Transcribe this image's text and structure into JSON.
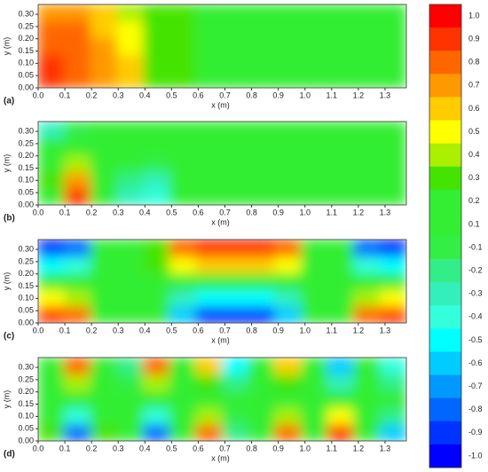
{
  "chart_data": {
    "type": "contour",
    "x_label": "x (m)",
    "y_label": "y (m)",
    "xlim": [
      0,
      1.38
    ],
    "ylim": [
      0,
      0.34
    ],
    "xticks": [
      {
        "value": 0,
        "label": "0.0"
      },
      0.1,
      0.2,
      0.3,
      0.4,
      0.5,
      0.6,
      0.7,
      0.8,
      0.9,
      {
        "value": 1,
        "label": "1.0"
      },
      1.1,
      1.2,
      1.3
    ],
    "yticks": [
      {
        "value": 0,
        "label": "0.00"
      },
      0.05,
      {
        "value": 0.1,
        "label": "0.10"
      },
      0.15,
      {
        "value": 0.2,
        "label": "0.20"
      },
      0.25,
      {
        "value": 0.3,
        "label": "0.30"
      }
    ],
    "colorbar": {
      "ticks": [
        {
          "value": 1,
          "label": "1.0"
        },
        0.9,
        0.8,
        0.7,
        0.6,
        0.5,
        0.4,
        0.3,
        0.2,
        0.1,
        -0.1,
        -0.2,
        -0.3,
        -0.4,
        -0.5,
        -0.6,
        -0.7,
        -0.8,
        -0.9,
        {
          "value": -1,
          "label": "-1.0"
        }
      ],
      "colors": [
        "#ff0000",
        "#ff3300",
        "#ff6600",
        "#ff9900",
        "#ffcc00",
        "#ffff00",
        "#aaf000",
        "#44e400",
        "#33ee33",
        "#33ee33",
        "#33ee44",
        "#33ee88",
        "#33f0bb",
        "#33ffdd",
        "#00ffff",
        "#00ccff",
        "#0099ff",
        "#0066ff",
        "#0033ff",
        "#0000ff"
      ]
    },
    "panels": [
      {
        "label": "(a)",
        "values": [
          [
            0.95,
            0.85,
            0.72,
            0.55,
            0.35,
            0.25,
            0.2,
            0.2,
            0.2,
            0.2,
            0.2,
            0.2,
            0.15,
            0.15
          ],
          [
            0.9,
            0.82,
            0.7,
            0.55,
            0.35,
            0.25,
            0.2,
            0.2,
            0.2,
            0.2,
            0.2,
            0.2,
            0.15,
            0.15
          ],
          [
            0.85,
            0.8,
            0.68,
            0.5,
            0.33,
            0.25,
            0.2,
            0.2,
            0.2,
            0.2,
            0.2,
            0.2,
            0.15,
            0.15
          ],
          [
            0.8,
            0.75,
            0.62,
            0.45,
            0.3,
            0.25,
            0.2,
            0.2,
            0.2,
            0.2,
            0.2,
            0.2,
            0.15,
            0.15
          ],
          [
            0.7,
            0.68,
            0.55,
            0.4,
            0.28,
            0.25,
            0.2,
            0.2,
            0.2,
            0.2,
            0.2,
            0.2,
            0.15,
            0.15
          ]
        ]
      },
      {
        "label": "(b)",
        "values": [
          [
            0.2,
            0.9,
            0.2,
            -0.3,
            -0.4,
            0.1,
            0.2,
            0.2,
            0.2,
            0.2,
            0.2,
            0.2,
            0.2,
            0.2
          ],
          [
            0.3,
            0.7,
            0.2,
            -0.2,
            -0.3,
            0.1,
            0.2,
            0.2,
            0.2,
            0.2,
            0.2,
            0.2,
            0.2,
            0.2
          ],
          [
            0.2,
            0.4,
            0.2,
            0.0,
            -0.1,
            0.2,
            0.2,
            0.2,
            0.2,
            0.2,
            0.2,
            0.2,
            0.2,
            0.2
          ],
          [
            0.1,
            0.2,
            0.2,
            0.2,
            0.2,
            0.2,
            0.2,
            0.2,
            0.2,
            0.2,
            0.2,
            0.2,
            0.2,
            0.2
          ],
          [
            -0.3,
            -0.1,
            0.2,
            0.2,
            0.2,
            0.2,
            0.2,
            0.2,
            0.2,
            0.2,
            0.2,
            0.2,
            0.2,
            0.2
          ]
        ]
      },
      {
        "label": "(c)",
        "values": [
          [
            0.9,
            0.8,
            0.2,
            0.2,
            0.1,
            -0.6,
            -0.9,
            -0.95,
            -0.9,
            -0.6,
            0.1,
            0.2,
            0.8,
            0.9
          ],
          [
            0.5,
            0.4,
            0.2,
            0.2,
            0.1,
            -0.3,
            -0.5,
            -0.5,
            -0.5,
            -0.3,
            0.1,
            0.2,
            0.4,
            0.5
          ],
          [
            0.2,
            0.2,
            0.2,
            0.2,
            0.2,
            0.2,
            0.2,
            0.2,
            0.2,
            0.2,
            0.2,
            0.2,
            0.2,
            0.2
          ],
          [
            -0.5,
            -0.4,
            0.2,
            0.2,
            0.3,
            0.5,
            0.6,
            0.6,
            0.6,
            0.5,
            0.2,
            0.2,
            -0.4,
            -0.5
          ],
          [
            -0.9,
            -0.8,
            0.2,
            0.2,
            0.3,
            0.8,
            0.9,
            0.9,
            0.9,
            0.8,
            0.2,
            0.2,
            -0.8,
            -0.9
          ]
        ]
      },
      {
        "label": "(d)",
        "values": [
          [
            0.3,
            -0.8,
            0.3,
            0.1,
            -0.8,
            0.2,
            0.8,
            -0.2,
            0.2,
            0.8,
            0.2,
            0.9,
            0.2,
            -0.6
          ],
          [
            0.2,
            -0.4,
            0.2,
            0.1,
            -0.4,
            0.2,
            0.4,
            -0.1,
            0.2,
            0.4,
            0.2,
            0.5,
            0.2,
            -0.2
          ],
          [
            0.2,
            0.2,
            0.2,
            0.2,
            0.2,
            0.2,
            0.2,
            0.2,
            0.2,
            0.2,
            0.2,
            0.2,
            0.2,
            0.2
          ],
          [
            0.2,
            0.4,
            0.1,
            -0.1,
            0.4,
            0.2,
            0.3,
            -0.2,
            0.2,
            0.3,
            0.2,
            -0.3,
            0.2,
            -0.2
          ],
          [
            0.2,
            0.8,
            0.1,
            -0.2,
            0.8,
            0.2,
            0.6,
            -0.5,
            0.2,
            0.6,
            0.2,
            -0.6,
            0.2,
            -0.4
          ]
        ]
      }
    ]
  }
}
